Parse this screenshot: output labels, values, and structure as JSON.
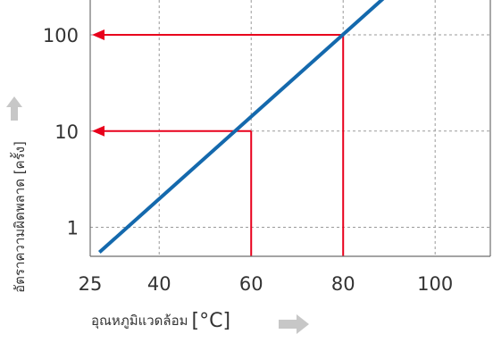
{
  "chart_data": {
    "type": "line",
    "xlabel": "อุณหภูมิแวดล้อม",
    "xunit": "[°C]",
    "ylabel": "อัตราความผิดพลาด [ครั้ง]",
    "x_ticks": [
      25,
      40,
      60,
      80,
      100
    ],
    "y_ticks": [
      1,
      10,
      100
    ],
    "y_scale": "log",
    "xlim": [
      25,
      112
    ],
    "ylim": [
      0.5,
      230
    ],
    "grid": true,
    "series": [
      {
        "x": [
          27,
          90
        ],
        "y": [
          0.55,
          270
        ],
        "color": "#1469ad"
      }
    ],
    "annotations": [
      {
        "x": 60,
        "y": 10,
        "color": "#e8001c"
      },
      {
        "x": 80,
        "y": 100,
        "color": "#e8001c"
      }
    ],
    "arrow_color": "#c7c7c7"
  }
}
